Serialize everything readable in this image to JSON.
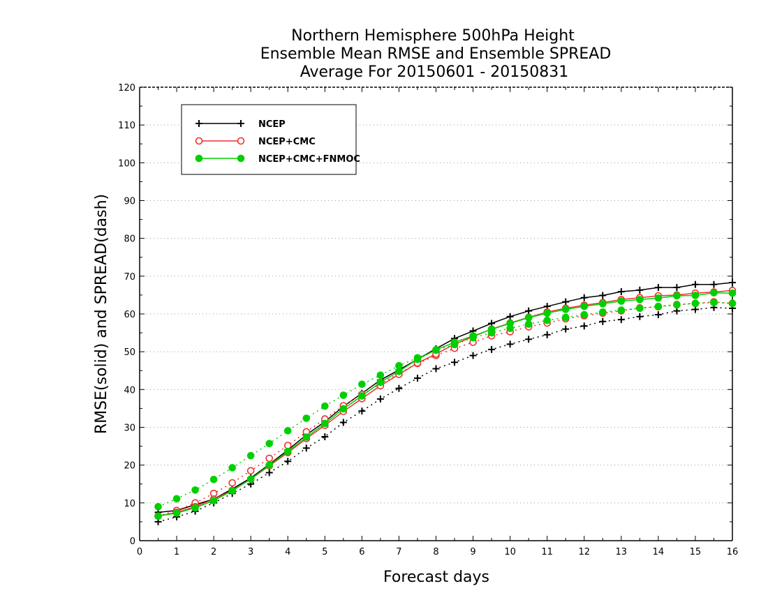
{
  "chart_data": {
    "type": "line",
    "title_lines": [
      "Northern Hemisphere 500hPa Height",
      "Ensemble Mean RMSE and Ensemble SPREAD",
      "Average For 20150601 - 20150831"
    ],
    "xlabel": "Forecast days",
    "ylabel": "RMSE(solid) and SPREAD(dash)",
    "xlim": [
      0,
      16
    ],
    "ylim": [
      0,
      120
    ],
    "xticks": [
      0,
      1,
      2,
      3,
      4,
      5,
      6,
      7,
      8,
      9,
      10,
      11,
      12,
      13,
      14,
      15,
      16
    ],
    "yticks": [
      0,
      10,
      20,
      30,
      40,
      50,
      60,
      70,
      80,
      90,
      100,
      110,
      120
    ],
    "grid": true,
    "legend_position": "top-left",
    "x": [
      0.5,
      1,
      1.5,
      2,
      2.5,
      3,
      3.5,
      4,
      4.5,
      5,
      5.5,
      6,
      6.5,
      7,
      7.5,
      8,
      8.5,
      9,
      9.5,
      10,
      10.5,
      11,
      11.5,
      12,
      12.5,
      13,
      13.5,
      14,
      14.5,
      15,
      15.5,
      16
    ],
    "series": [
      {
        "name": "NCEP",
        "color": "#000000",
        "marker": "plus",
        "rmse": [
          7.5,
          8.0,
          9.5,
          11.0,
          13.7,
          16.6,
          20.2,
          24.0,
          28.0,
          31.5,
          35.5,
          39.0,
          42.5,
          45.2,
          48.0,
          50.8,
          53.5,
          55.5,
          57.5,
          59.3,
          60.8,
          62.0,
          63.2,
          64.3,
          64.9,
          65.9,
          66.3,
          67.0,
          67.0,
          67.8,
          67.8,
          68.3
        ],
        "spread": [
          5.0,
          6.3,
          7.8,
          10.0,
          12.5,
          15.0,
          18.0,
          21.0,
          24.5,
          27.5,
          31.3,
          34.3,
          37.5,
          40.3,
          43.0,
          45.5,
          47.2,
          49.0,
          50.6,
          52.0,
          53.3,
          54.5,
          56.0,
          56.8,
          58.0,
          58.5,
          59.3,
          59.8,
          60.8,
          61.2,
          61.7,
          61.5
        ]
      },
      {
        "name": "NCEP+CMC",
        "color": "#ee3030",
        "marker": "open-circle",
        "rmse": [
          6.5,
          7.5,
          9.0,
          11.0,
          13.3,
          16.3,
          19.8,
          23.3,
          27.0,
          30.5,
          34.2,
          37.6,
          41.0,
          44.0,
          47.0,
          49.4,
          52.0,
          54.0,
          56.0,
          57.6,
          59.1,
          60.5,
          61.5,
          62.3,
          63.0,
          63.8,
          64.3,
          64.8,
          65.0,
          65.5,
          65.8,
          66.2
        ],
        "spread": [
          6.5,
          8.0,
          10.0,
          12.5,
          15.3,
          18.5,
          21.8,
          25.2,
          28.8,
          32.2,
          35.7,
          38.7,
          41.5,
          44.3,
          46.9,
          49.0,
          50.9,
          52.5,
          54.2,
          55.3,
          56.6,
          57.6,
          58.7,
          59.5,
          60.2,
          60.8,
          61.6,
          61.9,
          62.5,
          62.8,
          63.2,
          62.8
        ]
      },
      {
        "name": "NCEP+CMC+FNMOC",
        "color": "#00d000",
        "marker": "filled-circle",
        "rmse": [
          6.5,
          7.3,
          8.7,
          10.6,
          13.2,
          16.3,
          20.0,
          23.6,
          27.4,
          31.0,
          34.9,
          38.3,
          41.9,
          44.8,
          48.0,
          50.5,
          52.5,
          54.2,
          55.9,
          57.5,
          59.0,
          60.2,
          61.2,
          62.0,
          62.7,
          63.4,
          63.8,
          64.2,
          64.8,
          64.9,
          65.6,
          65.5
        ],
        "spread": [
          9.0,
          11.1,
          13.4,
          16.2,
          19.3,
          22.5,
          25.7,
          29.1,
          32.4,
          35.6,
          38.5,
          41.4,
          43.8,
          46.3,
          48.4,
          50.4,
          51.9,
          53.7,
          55.0,
          56.2,
          57.3,
          58.3,
          59.1,
          59.8,
          60.5,
          61.0,
          61.5,
          62.0,
          62.4,
          62.8,
          63.0,
          62.8
        ]
      }
    ]
  }
}
